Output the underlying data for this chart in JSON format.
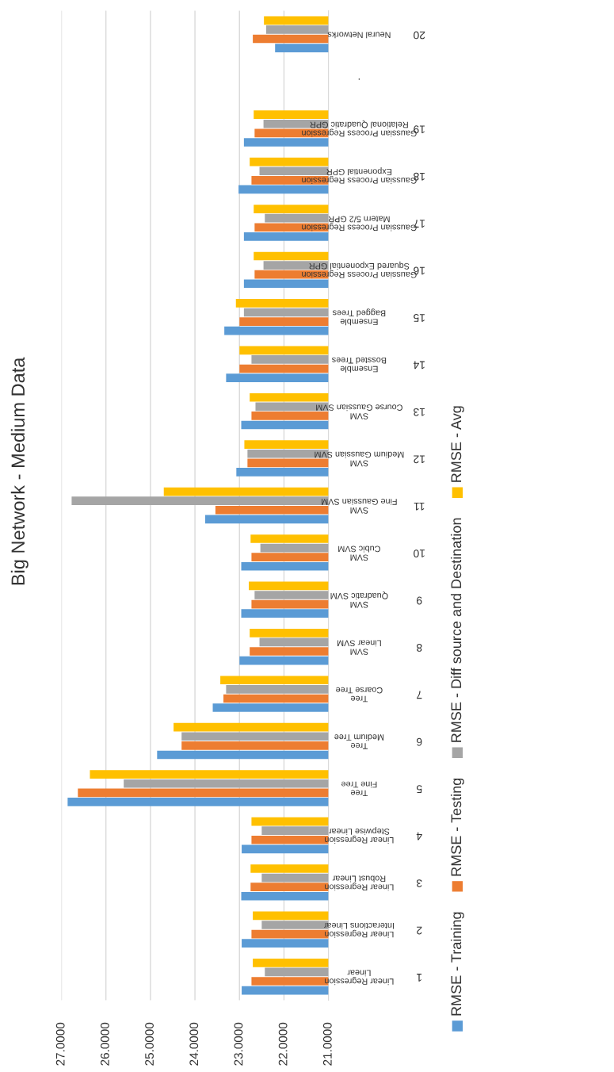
{
  "chart_data": {
    "type": "bar",
    "orientation": "horizontal",
    "title": "Big Network - Medium Data",
    "categories": [
      "20\nNeural Networks",
      ".",
      "19\nGaussian Process Regression\nRelational Quadratic GPR",
      "18\nGaussian Process Regression\nExponential GPR",
      "17\nGaussian Process Regression\nMatern 5/2 GPR",
      "16\nGaussian Process Regression\nSquared Exponential GPR",
      "15\nEnsemble\nBagged Trees",
      "14\nEnsemble\nBossted Trees",
      "13\nSVM\nCourse Gaussian SVM",
      "12\nSVM\nMedium Gaussian SVM",
      "11\nSVM\nFine Gaussian SVM",
      "10\nSVM\nCubic SVM",
      "9\nSVM\nQuadratic SVM",
      "8\nSVM\nLinear SVM",
      "7\nTree\nCoarse Tree",
      "6\nTree\nMedium Tree",
      "5\nTree\nFine Tree",
      "4\nLinear Regression\nStepwise Linear",
      "3\nLinear Regression\nRobust Linear",
      "2\nLinear Regression\nInteractions Linear",
      "1\nLinear Regression\nLinear"
    ],
    "series": [
      {
        "name": "RMSE - Training",
        "color": "#5b9bd5",
        "values": [
          22.2,
          null,
          22.9,
          23.02,
          22.9,
          22.9,
          23.34,
          23.3,
          22.96,
          23.07,
          23.77,
          22.96,
          22.96,
          23.0,
          23.6,
          24.85,
          26.86,
          22.95,
          22.96,
          22.95,
          22.95
        ]
      },
      {
        "name": "RMSE - Testing",
        "color": "#ed7d31",
        "values": [
          22.7,
          null,
          22.66,
          22.73,
          22.66,
          22.66,
          23.0,
          23.0,
          22.73,
          22.82,
          23.54,
          22.73,
          22.73,
          22.77,
          23.36,
          24.3,
          26.63,
          22.73,
          22.75,
          22.73,
          22.73
        ]
      },
      {
        "name": "RMSE - Diff source and Destination",
        "color": "#a5a5a5",
        "values": [
          22.4,
          null,
          22.46,
          22.55,
          22.43,
          22.46,
          22.9,
          22.73,
          22.64,
          22.82,
          26.77,
          22.53,
          22.66,
          22.55,
          23.3,
          24.3,
          25.6,
          22.5,
          22.5,
          22.5,
          22.43
        ]
      },
      {
        "name": "RMSE - Avg",
        "color": "#ffc000",
        "values": [
          22.45,
          null,
          22.68,
          22.77,
          22.68,
          22.68,
          23.08,
          23.0,
          22.77,
          22.89,
          24.7,
          22.75,
          22.79,
          22.77,
          23.43,
          24.48,
          26.36,
          22.73,
          22.75,
          22.7,
          22.7
        ]
      }
    ],
    "xlim": [
      27,
      21
    ],
    "xticks": [
      {
        "value": 27,
        "label": "27.0000"
      },
      {
        "value": 26,
        "label": "26.0000"
      },
      {
        "value": 25,
        "label": "25.0000"
      },
      {
        "value": 24,
        "label": "24.0000"
      },
      {
        "value": 23,
        "label": "23.0000"
      },
      {
        "value": 22,
        "label": "22.0000"
      },
      {
        "value": 21,
        "label": "21.0000"
      }
    ],
    "grid": "x",
    "legend": "right"
  }
}
